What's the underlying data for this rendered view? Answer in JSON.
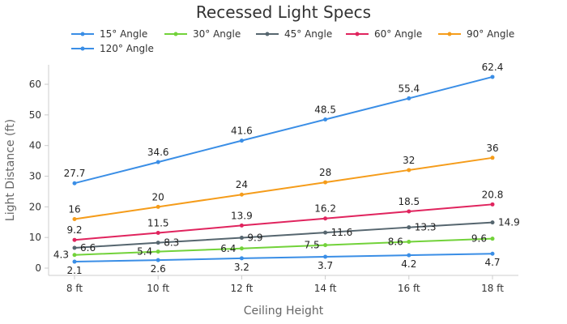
{
  "chart_data": {
    "type": "line",
    "title": "Recessed Light Specs",
    "xlabel": "Ceiling Height",
    "ylabel": "Light Distance (ft)",
    "categories": [
      "8 ft",
      "10 ft",
      "12 ft",
      "14 ft",
      "16 ft",
      "18 ft"
    ],
    "ylim": [
      -3,
      67
    ],
    "yticks": [
      0,
      10,
      20,
      30,
      40,
      50,
      60
    ],
    "grid": false,
    "legend": "top",
    "series": [
      {
        "name": "15° Angle",
        "color": "#3a8ee6",
        "values": [
          2.1,
          2.6,
          3.2,
          3.7,
          4.2,
          4.7
        ]
      },
      {
        "name": "30° Angle",
        "color": "#72d23a",
        "values": [
          4.3,
          5.4,
          6.4,
          7.5,
          8.6,
          9.6
        ]
      },
      {
        "name": "45° Angle",
        "color": "#56666f",
        "values": [
          6.6,
          8.3,
          9.9,
          11.6,
          13.3,
          14.9
        ]
      },
      {
        "name": "60° Angle",
        "color": "#e0245e",
        "values": [
          9.2,
          11.5,
          13.9,
          16.2,
          18.5,
          20.8
        ]
      },
      {
        "name": "90° Angle",
        "color": "#f59c1a",
        "values": [
          16,
          20,
          24,
          28,
          32,
          36
        ]
      },
      {
        "name": "120° Angle",
        "color": "#3a8ee6",
        "values": [
          27.7,
          34.6,
          41.6,
          48.5,
          55.4,
          62.4
        ]
      }
    ]
  }
}
